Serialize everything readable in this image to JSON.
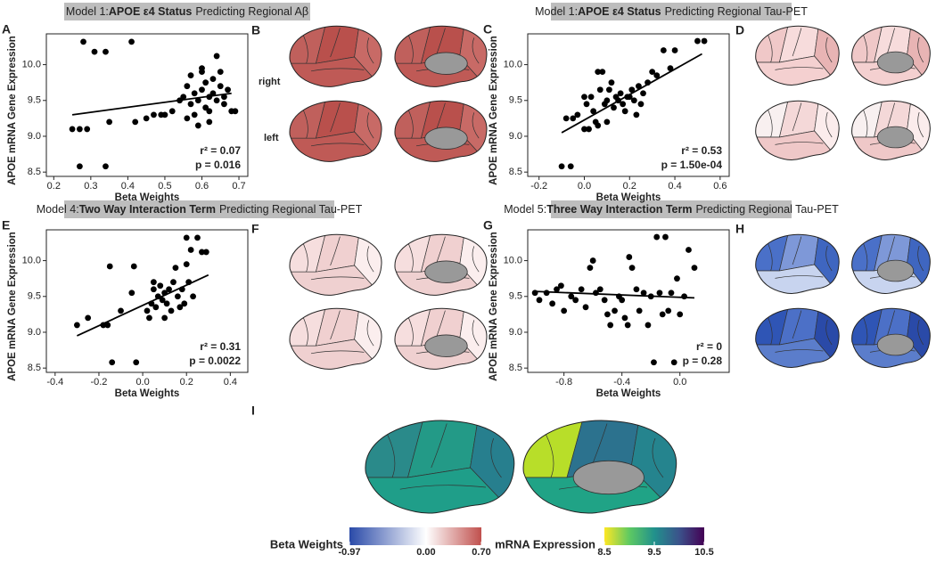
{
  "headers": [
    {
      "prefix": "Model 1:",
      "bold": "APOE ε4 Status",
      "suffix": "Predicting Regional Aβ"
    },
    {
      "prefix": "Model 1:",
      "bold": "APOE ε4 Status",
      "suffix": "Predicting Regional Tau-PET"
    },
    {
      "prefix": "Model 4:",
      "bold": "Two Way Interaction Term",
      "suffix": "Predicting Regional Tau-PET"
    },
    {
      "prefix": "Model 5:",
      "bold": "Three Way Interaction Term",
      "suffix": "Predicting Regional Tau-PET"
    }
  ],
  "panels": [
    "B",
    "D",
    "F",
    "H",
    "I"
  ],
  "hemispheres": [
    "right",
    "left"
  ],
  "colorbars": [
    {
      "title": "Beta Weights",
      "lim": [
        -0.97,
        0.7
      ],
      "colors": [
        "#2a4aa8",
        "#ffffff",
        "#c0504d"
      ],
      "ticks": [
        -0.97,
        {
          "value": 0,
          "label": "0.00"
        },
        {
          "value": 0.7,
          "label": "0.70"
        }
      ]
    },
    {
      "title": "mRNA Expression",
      "lim": [
        8.5,
        10.5
      ],
      "colors": [
        "#fde725",
        "#5ec962",
        "#21918c",
        "#3b528b",
        "#440154"
      ],
      "ticks": [
        8.5,
        9.5,
        10.5
      ]
    }
  ],
  "chart_data": [
    {
      "type": "scatter",
      "panel": "A",
      "xlabel": "Beta Weights",
      "ylabel": "APOE mRNA Gene Expression",
      "xlim": [
        0.18,
        0.724
      ],
      "ylim": [
        8.44,
        10.43
      ],
      "xticks": [
        0.2,
        0.3,
        0.4,
        0.5,
        0.6,
        0.7
      ],
      "yticks": [
        8.5,
        {
          "value": 9,
          "label": "9.0"
        },
        9.5,
        {
          "value": 10,
          "label": "10.0"
        }
      ],
      "x": [
        0.25,
        0.27,
        0.29,
        0.27,
        0.28,
        0.31,
        0.34,
        0.35,
        0.34,
        0.41,
        0.42,
        0.45,
        0.47,
        0.49,
        0.5,
        0.52,
        0.54,
        0.55,
        0.56,
        0.57,
        0.57,
        0.58,
        0.58,
        0.59,
        0.6,
        0.6,
        0.61,
        0.61,
        0.62,
        0.62,
        0.63,
        0.63,
        0.64,
        0.64,
        0.65,
        0.65,
        0.66,
        0.67,
        0.68,
        0.69,
        0.56,
        0.59,
        0.6,
        0.62,
        0.66
      ],
      "y": [
        9.1,
        9.1,
        9.1,
        8.58,
        10.32,
        10.18,
        10.18,
        9.2,
        8.58,
        10.32,
        9.2,
        9.25,
        9.3,
        9.3,
        9.3,
        9.35,
        9.5,
        9.55,
        9.7,
        9.45,
        9.85,
        9.6,
        9.3,
        9.5,
        9.9,
        9.65,
        9.4,
        9.75,
        9.55,
        9.35,
        9.8,
        9.6,
        10.12,
        9.5,
        9.9,
        9.7,
        9.45,
        9.65,
        9.35,
        9.35,
        9.25,
        9.15,
        9.95,
        9.2,
        9.55
      ],
      "fit": {
        "x": [
          0.25,
          0.68
        ],
        "y": [
          9.3,
          9.6
        ]
      },
      "annotations": [
        "r² = 0.07",
        "p = 0.016"
      ]
    },
    {
      "type": "scatter",
      "panel": "C",
      "xlabel": "Beta Weights",
      "ylabel": "APOE mRNA Gene Expression",
      "xlim": [
        -0.25,
        0.64
      ],
      "ylim": [
        8.44,
        10.43
      ],
      "xticks": [
        -0.2,
        {
          "value": 0,
          "label": "0.0"
        },
        0.2,
        0.4,
        0.6
      ],
      "yticks": [
        8.5,
        {
          "value": 9,
          "label": "9.0"
        },
        9.5,
        {
          "value": 10,
          "label": "10.0"
        }
      ],
      "x": [
        -0.1,
        -0.06,
        -0.08,
        -0.05,
        -0.03,
        0.0,
        0.01,
        0.02,
        0.03,
        0.04,
        0.05,
        0.06,
        0.07,
        0.08,
        0.09,
        0.1,
        0.1,
        0.11,
        0.12,
        0.13,
        0.14,
        0.15,
        0.16,
        0.17,
        0.18,
        0.19,
        0.2,
        0.21,
        0.22,
        0.23,
        0.24,
        0.26,
        0.28,
        0.3,
        0.32,
        0.35,
        0.38,
        0.4,
        0.5,
        0.53,
        0.06,
        0.0,
        0.25
      ],
      "y": [
        8.58,
        8.58,
        9.25,
        9.25,
        9.3,
        9.1,
        9.45,
        9.1,
        9.55,
        9.35,
        9.2,
        9.15,
        9.65,
        9.9,
        9.45,
        9.5,
        9.2,
        9.65,
        9.75,
        9.4,
        9.55,
        9.5,
        9.6,
        9.45,
        9.35,
        9.55,
        9.55,
        9.65,
        9.5,
        9.3,
        9.7,
        9.6,
        9.75,
        9.9,
        9.85,
        10.2,
        9.95,
        10.2,
        10.33,
        10.33,
        9.9,
        9.55,
        9.45
      ],
      "fit": {
        "x": [
          -0.1,
          0.52
        ],
        "y": [
          9.05,
          10.15
        ]
      },
      "annotations": [
        "r² = 0.53",
        "p = 1.50e-04"
      ]
    },
    {
      "type": "scatter",
      "panel": "E",
      "xlabel": "Beta Weights",
      "ylabel": "APOE mRNA Gene Expression",
      "xlim": [
        -0.44,
        0.48
      ],
      "ylim": [
        8.44,
        10.43
      ],
      "xticks": [
        -0.4,
        -0.2,
        {
          "value": 0,
          "label": "0.0"
        },
        0.2,
        0.4
      ],
      "yticks": [
        8.5,
        {
          "value": 9,
          "label": "9.0"
        },
        9.5,
        {
          "value": 10,
          "label": "10.0"
        }
      ],
      "x": [
        -0.3,
        -0.25,
        -0.18,
        -0.16,
        -0.15,
        -0.14,
        -0.1,
        -0.05,
        -0.04,
        -0.03,
        0.02,
        0.03,
        0.04,
        0.05,
        0.06,
        0.07,
        0.08,
        0.09,
        0.1,
        0.11,
        0.12,
        0.13,
        0.14,
        0.15,
        0.16,
        0.17,
        0.18,
        0.19,
        0.2,
        0.21,
        0.22,
        0.23,
        0.25,
        0.27,
        0.29,
        0.1,
        0.05,
        0.2
      ],
      "y": [
        9.1,
        9.2,
        9.1,
        9.1,
        9.92,
        8.58,
        9.3,
        9.55,
        9.92,
        8.58,
        9.3,
        9.2,
        9.4,
        9.6,
        9.35,
        9.5,
        9.65,
        9.45,
        9.55,
        9.4,
        9.6,
        9.3,
        9.7,
        9.9,
        9.5,
        9.35,
        9.6,
        9.4,
        10.32,
        9.7,
        10.15,
        9.5,
        10.32,
        10.12,
        10.12,
        9.2,
        9.7,
        9.95
      ],
      "fit": {
        "x": [
          -0.3,
          0.3
        ],
        "y": [
          8.95,
          9.8
        ]
      },
      "annotations": [
        "r² = 0.31",
        "p = 0.0022"
      ]
    },
    {
      "type": "scatter",
      "panel": "G",
      "xlabel": "Beta Weights",
      "ylabel": "APOE mRNA Gene Expression",
      "xlim": [
        -1.05,
        0.34
      ],
      "ylim": [
        8.44,
        10.43
      ],
      "xticks": [
        -0.8,
        -0.4,
        {
          "value": 0,
          "label": "0.0"
        }
      ],
      "yticks": [
        8.5,
        {
          "value": 9,
          "label": "9.0"
        },
        9.5,
        {
          "value": 10,
          "label": "10.0"
        }
      ],
      "x": [
        -1.0,
        -0.97,
        -0.92,
        -0.88,
        -0.85,
        -0.82,
        -0.8,
        -0.75,
        -0.72,
        -0.68,
        -0.65,
        -0.62,
        -0.58,
        -0.55,
        -0.52,
        -0.5,
        -0.48,
        -0.45,
        -0.42,
        -0.4,
        -0.38,
        -0.36,
        -0.33,
        -0.3,
        -0.28,
        -0.25,
        -0.22,
        -0.2,
        -0.18,
        -0.16,
        -0.14,
        -0.12,
        -0.1,
        -0.08,
        -0.06,
        -0.04,
        -0.02,
        0.0,
        0.03,
        0.06,
        0.1,
        -0.35,
        -0.6
      ],
      "y": [
        9.55,
        9.45,
        9.55,
        9.4,
        9.6,
        9.65,
        9.3,
        9.5,
        9.45,
        9.6,
        9.35,
        9.9,
        9.55,
        9.6,
        9.45,
        9.25,
        9.1,
        9.3,
        9.5,
        9.45,
        9.2,
        9.1,
        9.9,
        9.6,
        9.3,
        9.55,
        9.1,
        9.5,
        8.58,
        10.33,
        9.55,
        9.25,
        10.33,
        9.3,
        9.55,
        8.58,
        9.75,
        9.25,
        9.5,
        10.15,
        9.9,
        10.05,
        10.0
      ],
      "fit": {
        "x": [
          -1.0,
          0.1
        ],
        "y": [
          9.57,
          9.48
        ]
      },
      "annotations": [
        "r² = 0",
        "p = 0.28"
      ]
    }
  ]
}
